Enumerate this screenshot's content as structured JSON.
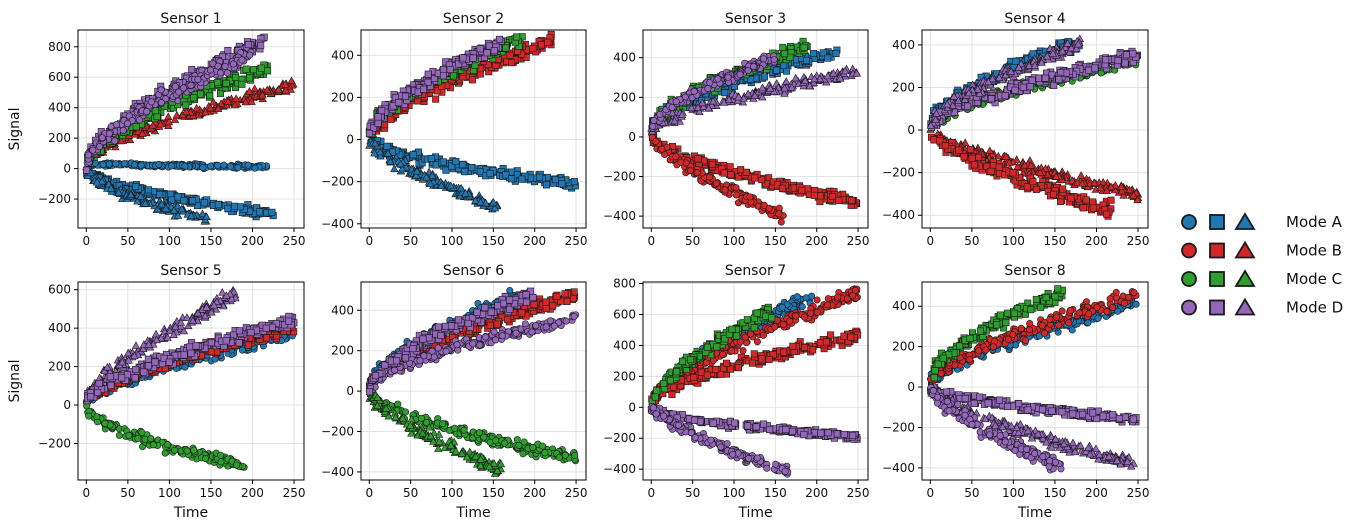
{
  "chart_data": {
    "type": "scatter",
    "xlabel": "Time",
    "ylabel": "Signal",
    "xticks": [
      0,
      50,
      100,
      150,
      200,
      250
    ],
    "modes": [
      {
        "name": "Mode A",
        "color": "#1f77b4"
      },
      {
        "name": "Mode B",
        "color": "#d62728"
      },
      {
        "name": "Mode C",
        "color": "#2ca02c"
      },
      {
        "name": "Mode D",
        "color": "#9467bd"
      }
    ],
    "markers": [
      "circle",
      "square",
      "triangle"
    ],
    "grid": true,
    "legend_position": "right",
    "panels": [
      {
        "title": "Sensor 1",
        "xlim": [
          -10,
          262
        ],
        "ylim": [
          -390,
          910
        ],
        "yticks": [
          -200,
          0,
          200,
          400,
          600,
          800
        ],
        "series": [
          {
            "mode": 0,
            "marker": "circle",
            "x_end": 220,
            "start": 30,
            "end": 10,
            "curve": 0.0
          },
          {
            "mode": 0,
            "marker": "square",
            "x_end": 225,
            "start": 0,
            "end": -300,
            "curve": 0.4
          },
          {
            "mode": 0,
            "marker": "triangle",
            "x_end": 145,
            "start": 0,
            "end": -330,
            "curve": 0.4
          },
          {
            "mode": 1,
            "marker": "triangle",
            "x_end": 250,
            "start": 40,
            "end": 540,
            "curve": 0.35
          },
          {
            "mode": 2,
            "marker": "square",
            "x_end": 220,
            "start": 30,
            "end": 660,
            "curve": 0.35
          },
          {
            "mode": 3,
            "marker": "square",
            "x_end": 215,
            "start": 40,
            "end": 840,
            "curve": 0.3
          },
          {
            "mode": 3,
            "marker": "circle",
            "x_end": 200,
            "start": 40,
            "end": 760,
            "curve": 0.3
          }
        ]
      },
      {
        "title": "Sensor 2",
        "xlim": [
          -10,
          262
        ],
        "ylim": [
          -420,
          520
        ],
        "yticks": [
          -400,
          -200,
          0,
          200,
          400
        ],
        "series": [
          {
            "mode": 0,
            "marker": "square",
            "x_end": 250,
            "start": 0,
            "end": -210,
            "curve": 0.4
          },
          {
            "mode": 0,
            "marker": "triangle",
            "x_end": 155,
            "start": 0,
            "end": -320,
            "curve": 0.3
          },
          {
            "mode": 1,
            "marker": "square",
            "x_end": 220,
            "start": 20,
            "end": 460,
            "curve": 0.3
          },
          {
            "mode": 2,
            "marker": "square",
            "x_end": 185,
            "start": 20,
            "end": 480,
            "curve": 0.35
          },
          {
            "mode": 3,
            "marker": "square",
            "x_end": 160,
            "start": 20,
            "end": 460,
            "curve": 0.35
          }
        ]
      },
      {
        "title": "Sensor 3",
        "xlim": [
          -10,
          262
        ],
        "ylim": [
          -460,
          540
        ],
        "yticks": [
          -400,
          -200,
          0,
          200,
          400
        ],
        "series": [
          {
            "mode": 0,
            "marker": "square",
            "x_end": 225,
            "start": 40,
            "end": 430,
            "curve": 0.35
          },
          {
            "mode": 1,
            "marker": "square",
            "x_end": 250,
            "start": 0,
            "end": -330,
            "curve": 0.35
          },
          {
            "mode": 1,
            "marker": "circle",
            "x_end": 160,
            "start": 0,
            "end": -400,
            "curve": 0.25
          },
          {
            "mode": 2,
            "marker": "square",
            "x_end": 190,
            "start": 40,
            "end": 460,
            "curve": 0.35
          },
          {
            "mode": 3,
            "marker": "triangle",
            "x_end": 250,
            "start": 40,
            "end": 330,
            "curve": 0.3
          },
          {
            "mode": 3,
            "marker": "circle",
            "x_end": 150,
            "start": 40,
            "end": 400,
            "curve": 0.35
          }
        ]
      },
      {
        "title": "Sensor 4",
        "xlim": [
          -10,
          262
        ],
        "ylim": [
          -460,
          470
        ],
        "yticks": [
          -400,
          -200,
          0,
          200,
          400
        ],
        "series": [
          {
            "mode": 0,
            "marker": "square",
            "x_end": 180,
            "start": 20,
            "end": 420,
            "curve": 0.35
          },
          {
            "mode": 1,
            "marker": "triangle",
            "x_end": 250,
            "start": 0,
            "end": -300,
            "curve": 0.3
          },
          {
            "mode": 1,
            "marker": "square",
            "x_end": 220,
            "start": 0,
            "end": -380,
            "curve": 0.3
          },
          {
            "mode": 2,
            "marker": "circle",
            "x_end": 250,
            "start": 20,
            "end": 320,
            "curve": 0.35
          },
          {
            "mode": 3,
            "marker": "square",
            "x_end": 250,
            "start": 20,
            "end": 350,
            "curve": 0.3
          },
          {
            "mode": 3,
            "marker": "triangle",
            "x_end": 180,
            "start": 20,
            "end": 400,
            "curve": 0.35
          }
        ]
      },
      {
        "title": "Sensor 5",
        "xlim": [
          -10,
          262
        ],
        "ylim": [
          -390,
          640
        ],
        "yticks": [
          -200,
          0,
          200,
          400,
          600
        ],
        "series": [
          {
            "mode": 0,
            "marker": "circle",
            "x_end": 250,
            "start": 20,
            "end": 370,
            "curve": 0.3
          },
          {
            "mode": 1,
            "marker": "square",
            "x_end": 250,
            "start": 20,
            "end": 400,
            "curve": 0.3
          },
          {
            "mode": 2,
            "marker": "circle",
            "x_end": 190,
            "start": 0,
            "end": -310,
            "curve": 0.45
          },
          {
            "mode": 3,
            "marker": "triangle",
            "x_end": 180,
            "start": 30,
            "end": 580,
            "curve": 0.25
          },
          {
            "mode": 3,
            "marker": "square",
            "x_end": 250,
            "start": 30,
            "end": 440,
            "curve": 0.3
          }
        ]
      },
      {
        "title": "Sensor 6",
        "xlim": [
          -10,
          262
        ],
        "ylim": [
          -440,
          540
        ],
        "yticks": [
          -400,
          -200,
          0,
          200,
          400
        ],
        "series": [
          {
            "mode": 0,
            "marker": "circle",
            "x_end": 180,
            "start": 20,
            "end": 470,
            "curve": 0.35
          },
          {
            "mode": 1,
            "marker": "square",
            "x_end": 250,
            "start": 20,
            "end": 480,
            "curve": 0.3
          },
          {
            "mode": 2,
            "marker": "circle",
            "x_end": 250,
            "start": 0,
            "end": -330,
            "curve": 0.4
          },
          {
            "mode": 2,
            "marker": "triangle",
            "x_end": 160,
            "start": 0,
            "end": -390,
            "curve": 0.3
          },
          {
            "mode": 3,
            "marker": "circle",
            "x_end": 250,
            "start": 20,
            "end": 360,
            "curve": 0.35
          },
          {
            "mode": 3,
            "marker": "square",
            "x_end": 200,
            "start": 20,
            "end": 480,
            "curve": 0.35
          }
        ]
      },
      {
        "title": "Sensor 7",
        "xlim": [
          -10,
          262
        ],
        "ylim": [
          -470,
          810
        ],
        "yticks": [
          -400,
          -200,
          0,
          200,
          400,
          600,
          800
        ],
        "series": [
          {
            "mode": 0,
            "marker": "circle",
            "x_end": 195,
            "start": 30,
            "end": 730,
            "curve": 0.25
          },
          {
            "mode": 1,
            "marker": "circle",
            "x_end": 250,
            "start": 30,
            "end": 740,
            "curve": 0.3
          },
          {
            "mode": 1,
            "marker": "square",
            "x_end": 250,
            "start": 30,
            "end": 460,
            "curve": 0.35
          },
          {
            "mode": 2,
            "marker": "square",
            "x_end": 150,
            "start": 30,
            "end": 640,
            "curve": 0.3
          },
          {
            "mode": 3,
            "marker": "square",
            "x_end": 250,
            "start": 0,
            "end": -190,
            "curve": 0.45
          },
          {
            "mode": 3,
            "marker": "circle",
            "x_end": 165,
            "start": 0,
            "end": -420,
            "curve": 0.25
          }
        ]
      },
      {
        "title": "Sensor 8",
        "xlim": [
          -10,
          262
        ],
        "ylim": [
          -460,
          520
        ],
        "yticks": [
          -400,
          -200,
          0,
          200,
          400
        ],
        "series": [
          {
            "mode": 0,
            "marker": "circle",
            "x_end": 250,
            "start": 20,
            "end": 420,
            "curve": 0.3
          },
          {
            "mode": 1,
            "marker": "circle",
            "x_end": 250,
            "start": 20,
            "end": 460,
            "curve": 0.3
          },
          {
            "mode": 2,
            "marker": "square",
            "x_end": 160,
            "start": 40,
            "end": 470,
            "curve": 0.35
          },
          {
            "mode": 3,
            "marker": "square",
            "x_end": 250,
            "start": 0,
            "end": -160,
            "curve": 0.4
          },
          {
            "mode": 3,
            "marker": "triangle",
            "x_end": 245,
            "start": 0,
            "end": -380,
            "curve": 0.3
          },
          {
            "mode": 3,
            "marker": "circle",
            "x_end": 160,
            "start": 0,
            "end": -400,
            "curve": 0.3
          }
        ]
      }
    ]
  }
}
